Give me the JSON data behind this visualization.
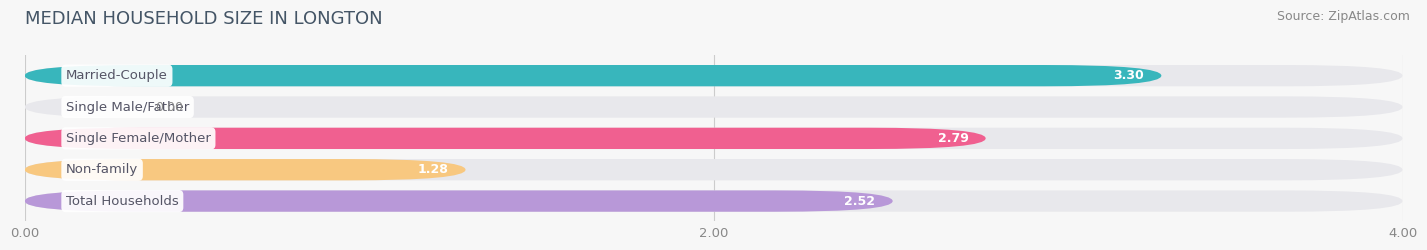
{
  "title": "MEDIAN HOUSEHOLD SIZE IN LONGTON",
  "source": "Source: ZipAtlas.com",
  "categories": [
    "Married-Couple",
    "Single Male/Father",
    "Single Female/Mother",
    "Non-family",
    "Total Households"
  ],
  "values": [
    3.3,
    0.0,
    2.79,
    1.28,
    2.52
  ],
  "bar_colors": [
    "#38b6bc",
    "#a0b4e8",
    "#f06090",
    "#f8c880",
    "#b898d8"
  ],
  "bar_bg_color": "#e8e8ec",
  "xlim_max": 4.0,
  "xticks": [
    0.0,
    2.0,
    4.0
  ],
  "xtick_labels": [
    "0.00",
    "2.00",
    "4.00"
  ],
  "background_color": "#f7f7f7",
  "title_fontsize": 13,
  "label_fontsize": 9.5,
  "value_fontsize": 9,
  "source_fontsize": 9,
  "bar_height": 0.68,
  "label_text_color": "#555566"
}
